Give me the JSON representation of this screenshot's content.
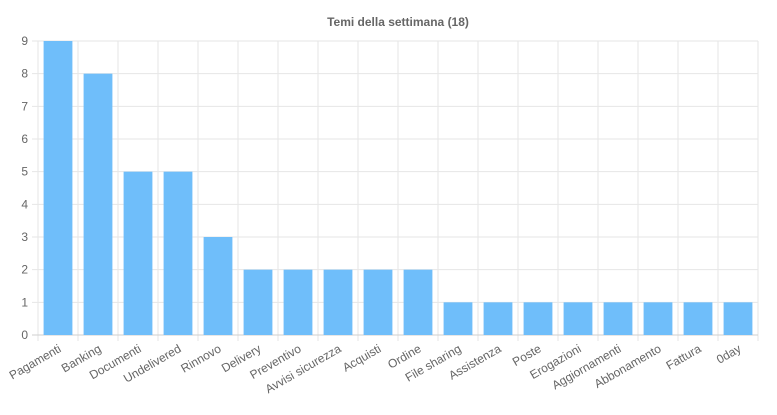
{
  "chart_data": {
    "type": "bar",
    "title": "Temi della settimana (18)",
    "categories": [
      "Pagamenti",
      "Banking",
      "Documenti",
      "Undelivered",
      "Rinnovo",
      "Delivery",
      "Preventivo",
      "Avvisi sicurezza",
      "Acquisti",
      "Ordine",
      "File sharing",
      "Assistenza",
      "Poste",
      "Erogazioni",
      "Aggiornamenti",
      "Abbonamento",
      "Fattura",
      "0day"
    ],
    "values": [
      9,
      8,
      5,
      5,
      3,
      2,
      2,
      2,
      2,
      2,
      1,
      1,
      1,
      1,
      1,
      1,
      1,
      1
    ],
    "color": "#6fbefa",
    "ylim": [
      0,
      9
    ],
    "yticks": [
      0,
      1,
      2,
      3,
      4,
      5,
      6,
      7,
      8,
      9
    ],
    "grid": true
  }
}
